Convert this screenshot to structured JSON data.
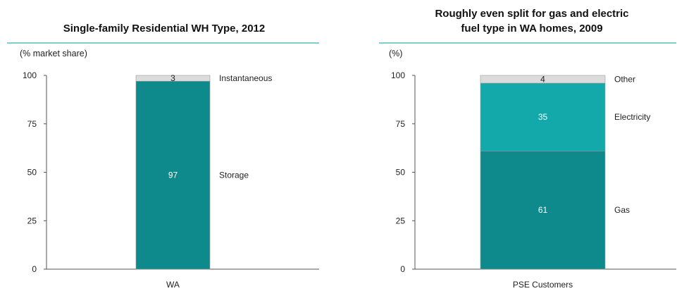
{
  "chart_data": [
    {
      "type": "bar",
      "stacked": true,
      "title": "Single-family Residential WH Type, 2012",
      "unit_label": "(% market share)",
      "categories": [
        "WA"
      ],
      "yticks": [
        0,
        25,
        50,
        75,
        100
      ],
      "ylim": [
        0,
        100
      ],
      "grid": false,
      "legend": "segment labels right of bar",
      "series": [
        {
          "name": "Storage",
          "values": [
            97
          ],
          "color": "#0e8a8c",
          "text_color": "#ffffff"
        },
        {
          "name": "Instantaneous",
          "values": [
            3
          ],
          "color": "#dcdcdc",
          "text_color": "#222222"
        }
      ]
    },
    {
      "type": "bar",
      "stacked": true,
      "title": "Roughly even split for gas and electric fuel type in WA homes, 2009",
      "title_lines": [
        "Roughly even split for gas and electric",
        "fuel type in WA homes, 2009"
      ],
      "unit_label": "(%)",
      "categories": [
        "PSE Customers"
      ],
      "yticks": [
        0,
        25,
        50,
        75,
        100
      ],
      "ylim": [
        0,
        100
      ],
      "grid": false,
      "legend": "segment labels right of bar",
      "series": [
        {
          "name": "Gas",
          "values": [
            61
          ],
          "color": "#0e8a8c",
          "text_color": "#ffffff"
        },
        {
          "name": "Electricity",
          "values": [
            35
          ],
          "color": "#13a9aa",
          "text_color": "#ffffff"
        },
        {
          "name": "Other",
          "values": [
            4
          ],
          "color": "#dcdcdc",
          "text_color": "#222222"
        }
      ]
    }
  ],
  "colors": {
    "title_rule": "#7ccfcd",
    "axis": "#555555"
  }
}
